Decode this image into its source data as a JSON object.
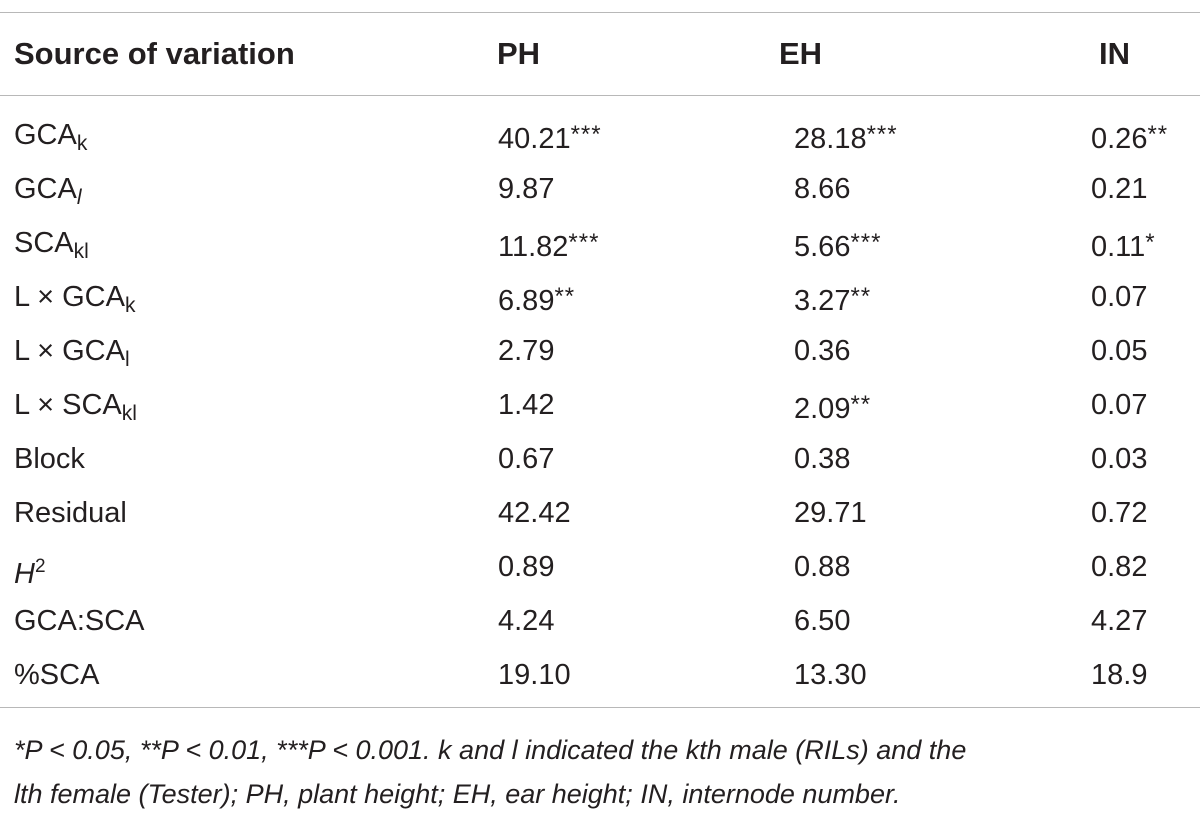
{
  "header": {
    "source": "Source of variation",
    "ph": "PH",
    "eh": "EH",
    "in": "IN"
  },
  "rows": [
    {
      "src_main": "GCA",
      "src_sub": "k",
      "src_sub_italic": false,
      "src_sup": "",
      "ph": "40.21",
      "ph_sig": "***",
      "eh": "28.18",
      "eh_sig": "***",
      "in": "0.26",
      "in_sig": "**"
    },
    {
      "src_main": "GCA",
      "src_sub": "l",
      "src_sub_italic": true,
      "src_sup": "",
      "ph": "9.87",
      "ph_sig": "",
      "eh": "8.66",
      "eh_sig": "",
      "in": "0.21",
      "in_sig": ""
    },
    {
      "src_main": "SCA",
      "src_sub": "kl",
      "src_sub_italic": false,
      "src_sup": "",
      "ph": "11.82",
      "ph_sig": "***",
      "eh": "5.66",
      "eh_sig": "***",
      "in": "0.11",
      "in_sig": "*"
    },
    {
      "src_main": "L × GCA",
      "src_sub": "k",
      "src_sub_italic": false,
      "src_sup": "",
      "ph": "6.89",
      "ph_sig": "**",
      "eh": "3.27",
      "eh_sig": "**",
      "in": "0.07",
      "in_sig": ""
    },
    {
      "src_main": "L × GCA",
      "src_sub": "l",
      "src_sub_italic": false,
      "src_sup": "",
      "ph": "2.79",
      "ph_sig": "",
      "eh": "0.36",
      "eh_sig": "",
      "in": "0.05",
      "in_sig": ""
    },
    {
      "src_main": "L × SCA",
      "src_sub": "kl",
      "src_sub_italic": false,
      "src_sup": "",
      "ph": "1.42",
      "ph_sig": "",
      "eh": "2.09",
      "eh_sig": "**",
      "in": "0.07",
      "in_sig": ""
    },
    {
      "src_main": "Block",
      "src_sub": "",
      "src_sub_italic": false,
      "src_sup": "",
      "ph": "0.67",
      "ph_sig": "",
      "eh": "0.38",
      "eh_sig": "",
      "in": "0.03",
      "in_sig": ""
    },
    {
      "src_main": "Residual",
      "src_sub": "",
      "src_sub_italic": false,
      "src_sup": "",
      "ph": "42.42",
      "ph_sig": "",
      "eh": "29.71",
      "eh_sig": "",
      "in": "0.72",
      "in_sig": ""
    },
    {
      "src_main": "H",
      "src_main_italic": true,
      "src_sub": "",
      "src_sub_italic": false,
      "src_sup": "2",
      "ph": "0.89",
      "ph_sig": "",
      "eh": "0.88",
      "eh_sig": "",
      "in": "0.82",
      "in_sig": ""
    },
    {
      "src_main": "GCA:SCA",
      "src_sub": "",
      "src_sub_italic": false,
      "src_sup": "",
      "ph": "4.24",
      "ph_sig": "",
      "eh": "6.50",
      "eh_sig": "",
      "in": "4.27",
      "in_sig": ""
    },
    {
      "src_main": "%SCA",
      "src_sub": "",
      "src_sub_italic": false,
      "src_sup": "",
      "ph": "19.10",
      "ph_sig": "",
      "eh": "13.30",
      "eh_sig": "",
      "in": "18.9",
      "in_sig": ""
    }
  ],
  "footnote": {
    "line1": "*P < 0.05, **P < 0.01, ***P < 0.001. k and l indicated the kth male (RILs) and the",
    "line2": "lth female (Tester); PH, plant height; EH, ear height; IN, internode number."
  }
}
